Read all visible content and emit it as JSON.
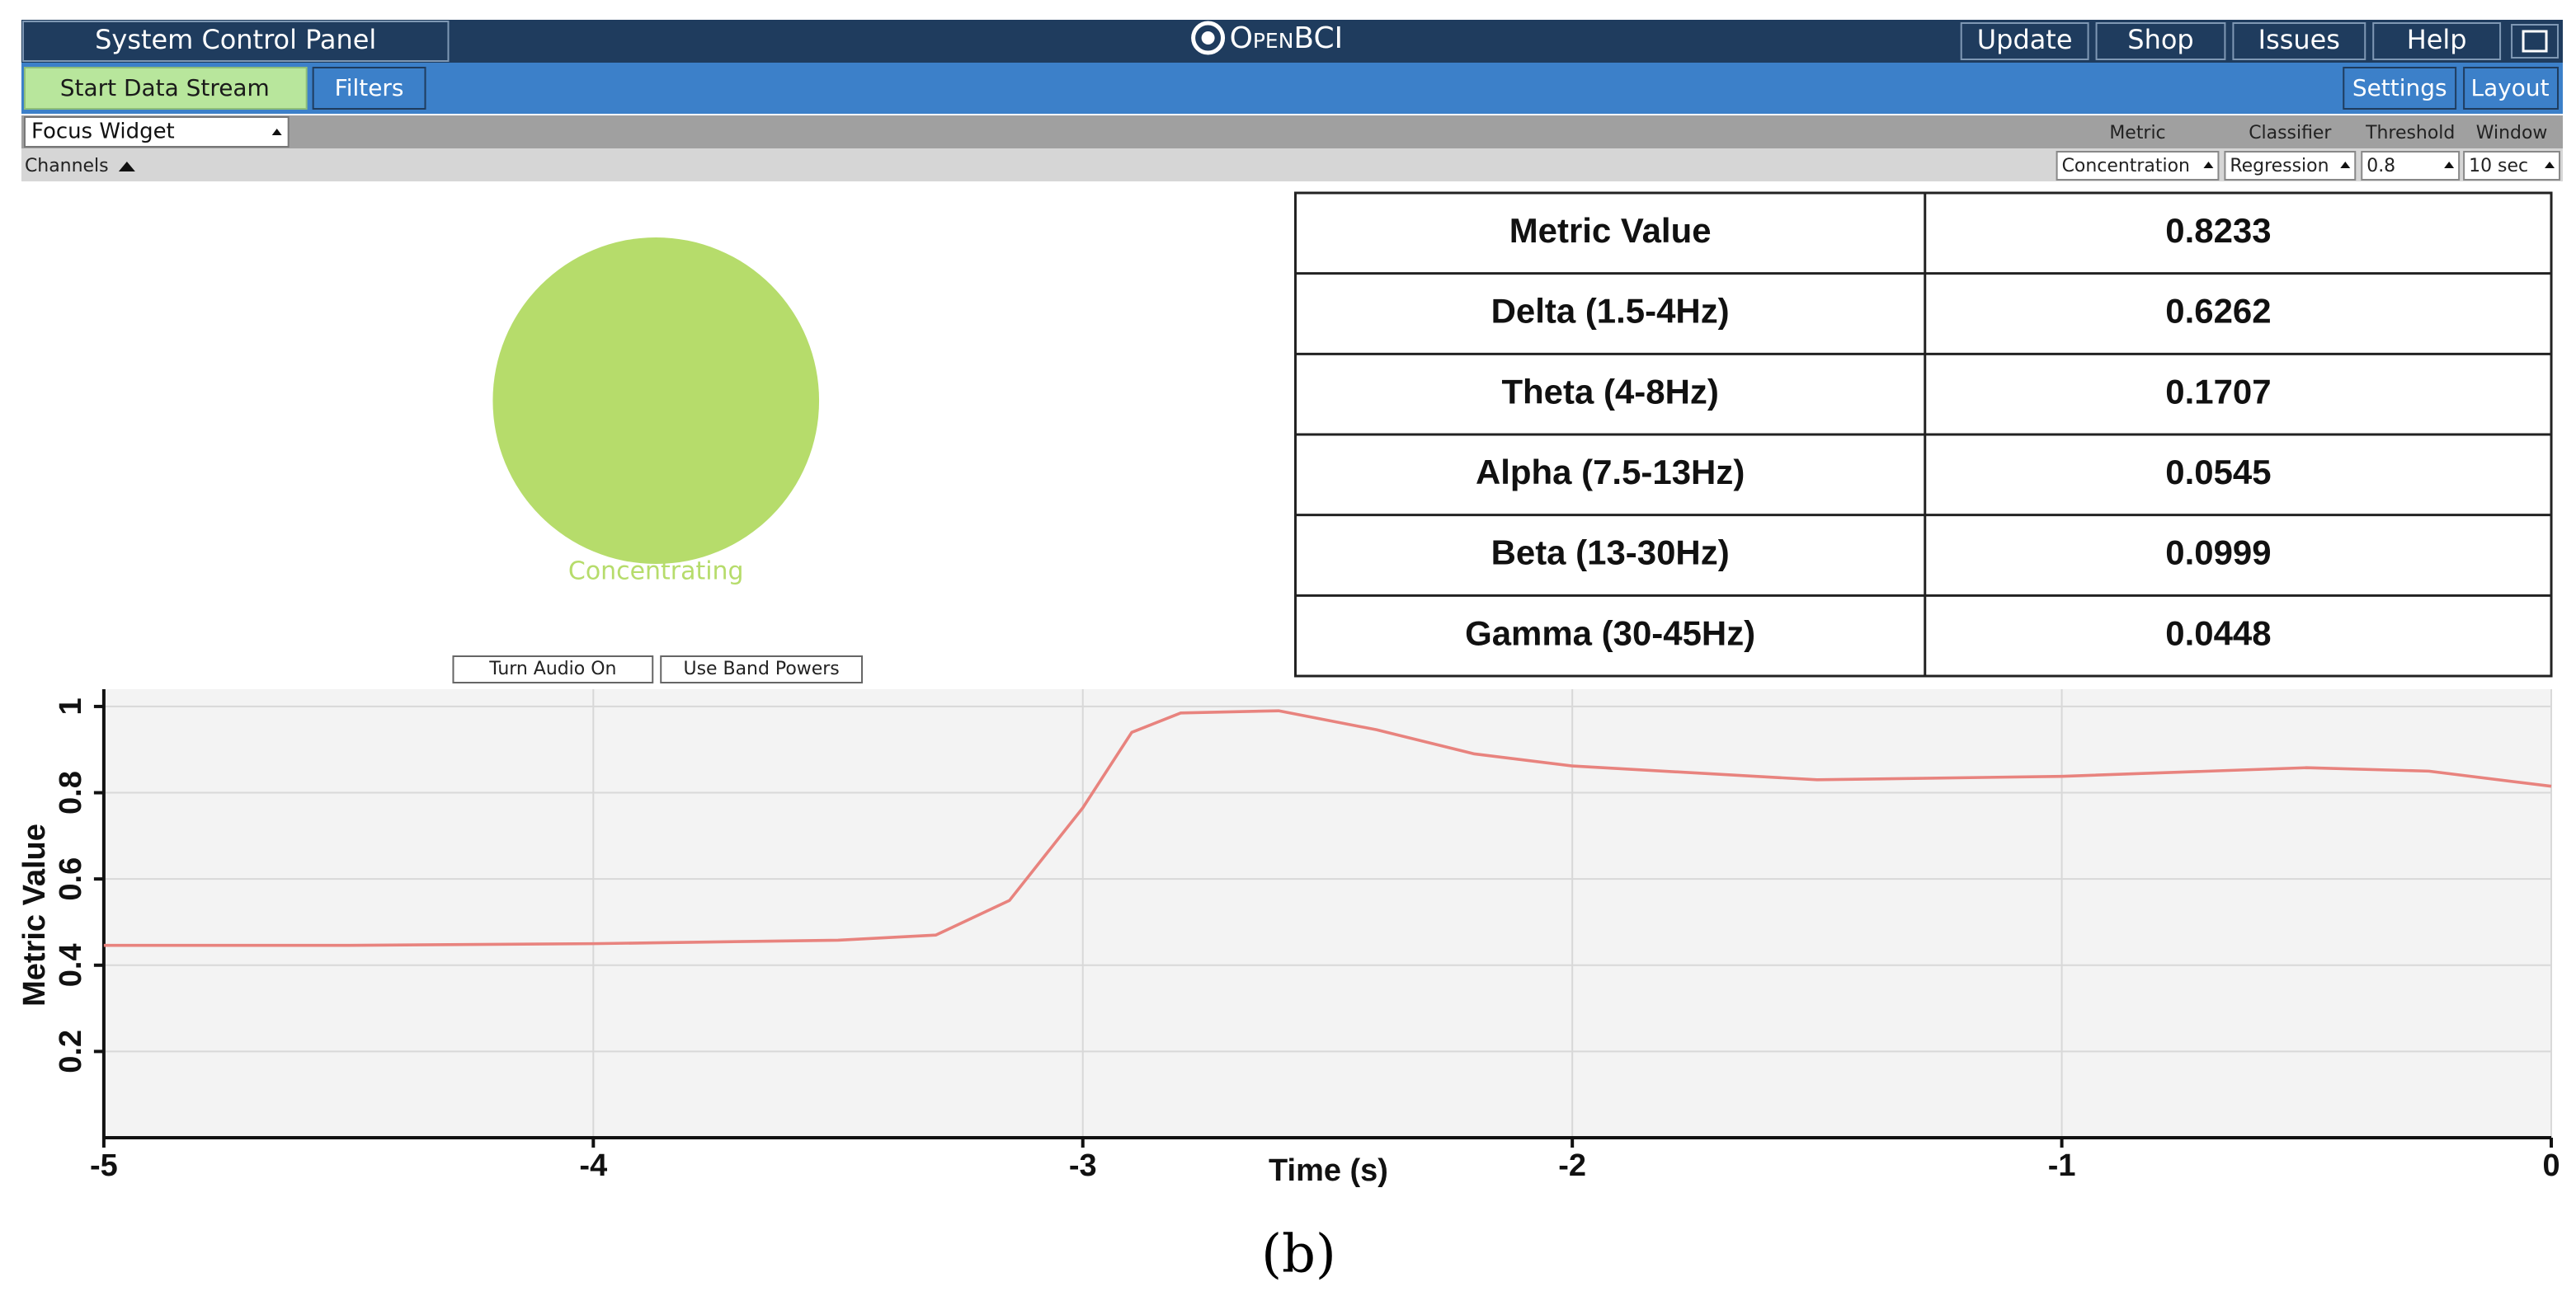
{
  "nav": {
    "title": "System Control Panel",
    "logo": "OpenBCI",
    "buttons": [
      "Update",
      "Shop",
      "Issues",
      "Help"
    ]
  },
  "toolbar": {
    "start": "Start Data Stream",
    "filters": "Filters",
    "settings": "Settings",
    "layout": "Layout"
  },
  "widget": {
    "name": "Focus Widget",
    "channels": "Channels",
    "dropdowns": [
      {
        "label": "Metric",
        "value": "Concentration"
      },
      {
        "label": "Classifier",
        "value": "Regression"
      },
      {
        "label": "Threshold",
        "value": "0.8"
      },
      {
        "label": "Window",
        "value": "10 sec"
      }
    ],
    "status": "Concentrating",
    "buttons": [
      "Turn Audio On",
      "Use Band Powers"
    ]
  },
  "table": {
    "rows": [
      [
        "Metric Value",
        "0.8233"
      ],
      [
        "Delta (1.5-4Hz)",
        "0.6262"
      ],
      [
        "Theta (4-8Hz)",
        "0.1707"
      ],
      [
        "Alpha (7.5-13Hz)",
        "0.0545"
      ],
      [
        "Beta (13-30Hz)",
        "0.0999"
      ],
      [
        "Gamma (30-45Hz)",
        "0.0448"
      ]
    ]
  },
  "chart_data": {
    "type": "line",
    "x_label": "Time (s)",
    "y_label": "Metric Value",
    "x": [
      -5,
      -4.5,
      -4,
      -3.5,
      -3.3,
      -3.15,
      -3,
      -2.9,
      -2.8,
      -2.6,
      -2.4,
      -2.2,
      -2,
      -1.5,
      -1,
      -0.5,
      -0.25,
      0
    ],
    "values": [
      0.446,
      0.446,
      0.45,
      0.458,
      0.47,
      0.55,
      0.765,
      0.94,
      0.985,
      0.99,
      0.946,
      0.89,
      0.862,
      0.83,
      0.838,
      0.858,
      0.85,
      0.815
    ],
    "color": "#e8837e",
    "xlim": [
      -5,
      0
    ],
    "ylim": [
      0,
      1.04
    ],
    "xticks": [
      -5,
      -4,
      -3,
      -2,
      -1,
      0
    ],
    "yticks": [
      0.2,
      0.4,
      0.6,
      0.8,
      1
    ],
    "grid": true
  },
  "caption": "(b)"
}
